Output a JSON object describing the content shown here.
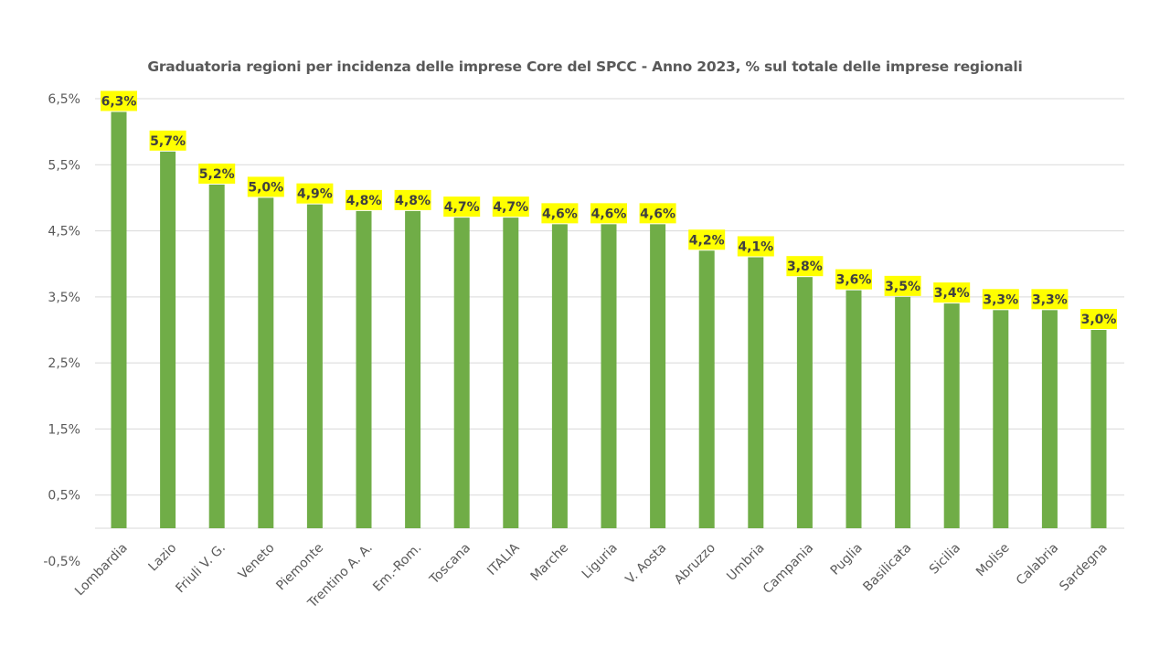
{
  "chart_data": {
    "type": "bar",
    "title": "Graduatoria regioni per incidenza delle  imprese Core del SPCC - Anno 2023, % sul totale delle imprese regionali",
    "xlabel": "",
    "ylabel": "",
    "categories": [
      "Lombardia",
      "Lazio",
      "Friuli V. G.",
      "Veneto",
      "Piemonte",
      "Trentino A. A.",
      "Em.-Rom.",
      "Toscana",
      "ITALIA",
      "Marche",
      "Liguria",
      "V. Aosta",
      "Abruzzo",
      "Umbria",
      "Campania",
      "Puglia",
      "Basilicata",
      "Sicilia",
      "Molise",
      "Calabria",
      "Sardegna"
    ],
    "values": [
      6.3,
      5.7,
      5.2,
      5.0,
      4.9,
      4.8,
      4.8,
      4.7,
      4.7,
      4.6,
      4.6,
      4.6,
      4.2,
      4.1,
      3.8,
      3.6,
      3.5,
      3.4,
      3.3,
      3.3,
      3.0
    ],
    "data_labels": [
      "6,3%",
      "5,7%",
      "5,2%",
      "5,0%",
      "4,9%",
      "4,8%",
      "4,8%",
      "4,7%",
      "4,7%",
      "4,6%",
      "4,6%",
      "4,6%",
      "4,2%",
      "4,1%",
      "3,8%",
      "3,6%",
      "3,5%",
      "3,4%",
      "3,3%",
      "3,3%",
      "3,0%"
    ],
    "y_ticks": [
      -0.5,
      0.5,
      1.5,
      2.5,
      3.5,
      4.5,
      5.5,
      6.5
    ],
    "y_tick_labels": [
      "-0,5%",
      "0,5%",
      "1,5%",
      "2,5%",
      "3,5%",
      "4,5%",
      "5,5%",
      "6,5%"
    ],
    "ylim": [
      -0.5,
      6.5
    ],
    "grid": true,
    "legend": "none",
    "colors": {
      "bar": "#70AD47",
      "label_bg": "#FFFF00",
      "grid": "#D9D9D9",
      "axis": "#D9D9D9",
      "text": "#595959",
      "label_text": "#404040"
    }
  }
}
